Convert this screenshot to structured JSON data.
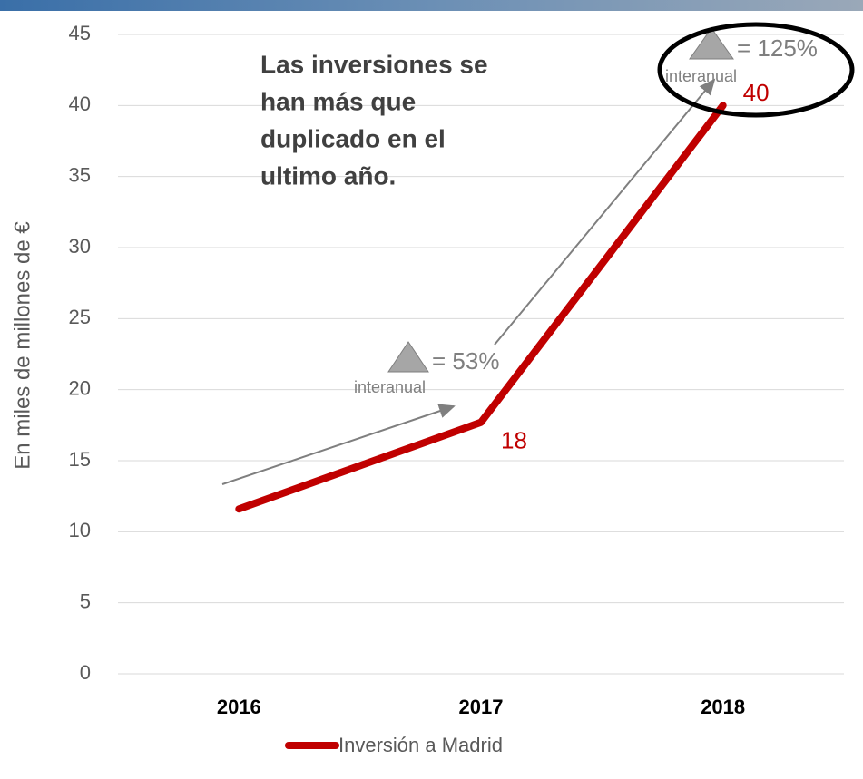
{
  "chart_data": {
    "type": "line",
    "y_label": "En miles de millones de €",
    "categories": [
      "2016",
      "2017",
      "2018"
    ],
    "series": [
      {
        "name": "Inversión a Madrid",
        "color": "#c00000",
        "values": [
          11.6,
          17.7,
          40
        ],
        "value_labels": [
          null,
          "18",
          "40"
        ]
      }
    ],
    "ylim": [
      0,
      45
    ],
    "yticks": [
      0,
      5,
      10,
      15,
      20,
      25,
      30,
      35,
      40,
      45
    ],
    "grid": true,
    "headline": [
      "Las inversiones se",
      "han más que",
      "duplicado en el",
      "ultimo año."
    ],
    "annotations": [
      {
        "text": "= 53%",
        "note": "interanual"
      },
      {
        "text": "= 125%",
        "note": "interanual"
      }
    ]
  }
}
